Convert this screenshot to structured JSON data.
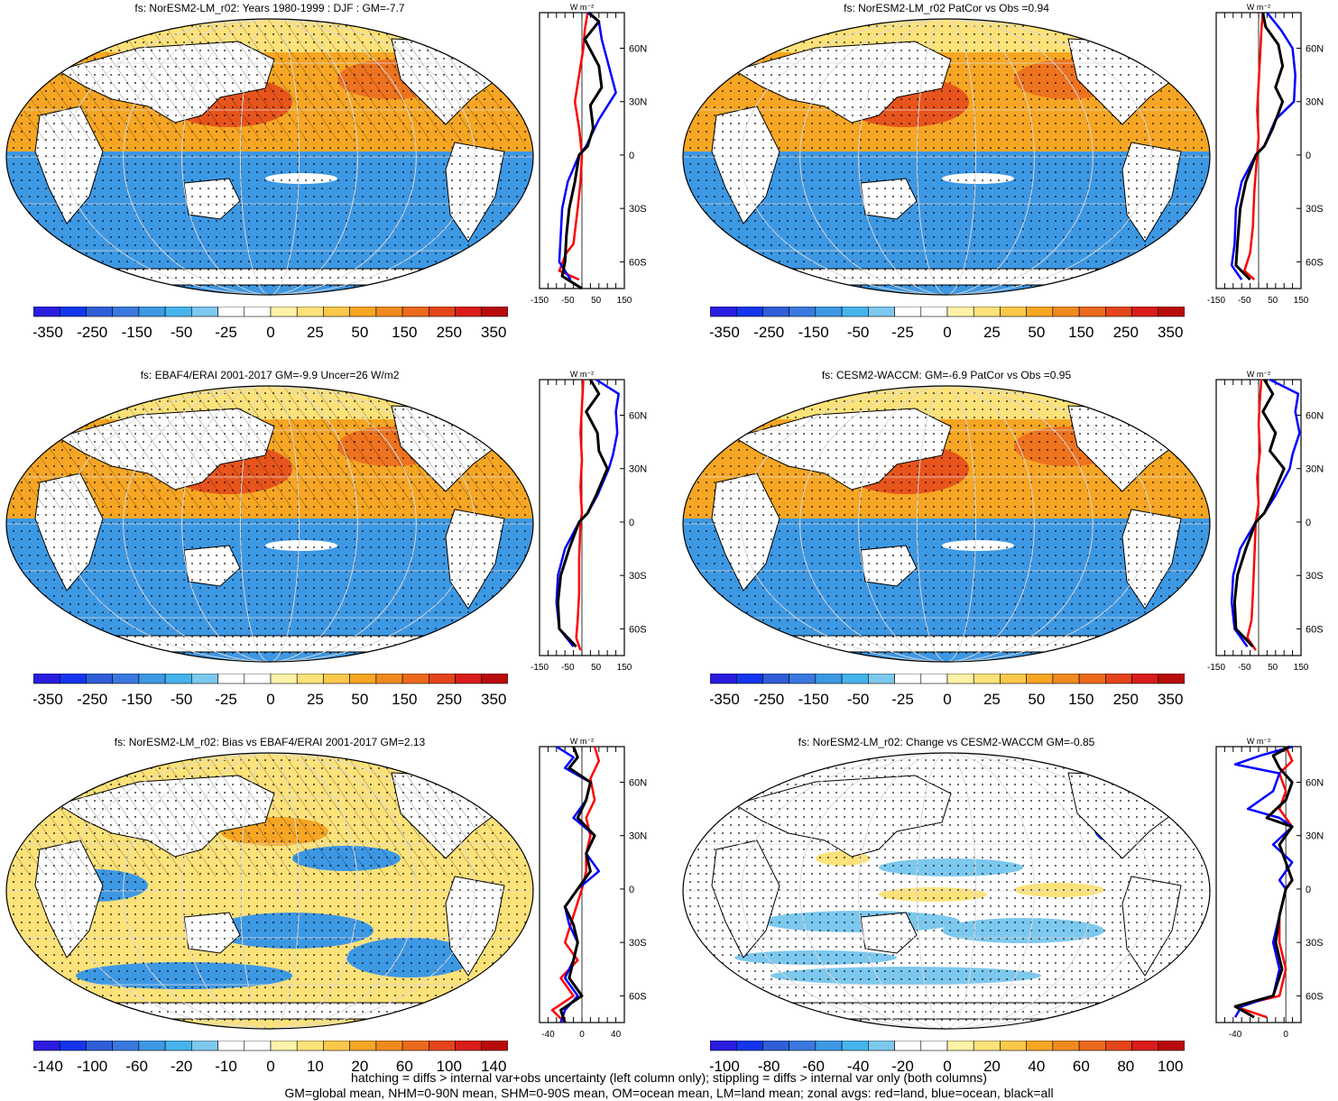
{
  "chart_data": [
    {
      "type": "heatmap",
      "title": "fs: NorESM2-LM_r02: Years 1980-1999 : DJF : GM=-7.7",
      "map_pattern": "nh-positive-sh-negative",
      "overlay": [
        "hatching",
        "stippling"
      ],
      "colorbar": {
        "ticks": [
          "-350",
          "-250",
          "-150",
          "-50",
          "-25",
          "0",
          "25",
          "50",
          "150",
          "250",
          "350"
        ]
      },
      "zonal": {
        "units": "W m⁻²",
        "xticks": [
          "-150",
          "-50",
          "50",
          "150"
        ],
        "xlim": [
          -150,
          150
        ],
        "yticks": [
          "60N",
          "30N",
          "0",
          "30S",
          "60S"
        ],
        "series": [
          {
            "name": "land",
            "color": "#ff0000",
            "lat": [
              80,
              70,
              60,
              45,
              30,
              15,
              0,
              -15,
              -30,
              -50,
              -55,
              -65,
              -70
            ],
            "values": [
              20,
              10,
              5,
              -10,
              -25,
              -10,
              0,
              -5,
              -15,
              -30,
              -55,
              -80,
              -10
            ]
          },
          {
            "name": "ocean",
            "color": "#0000ff",
            "lat": [
              80,
              75,
              65,
              50,
              35,
              20,
              5,
              0,
              -15,
              -30,
              -45,
              -60,
              -70
            ],
            "values": [
              20,
              60,
              70,
              95,
              120,
              60,
              15,
              -10,
              -50,
              -70,
              -75,
              -80,
              -40
            ]
          },
          {
            "name": "all",
            "color": "#000000",
            "lat": [
              80,
              75,
              65,
              50,
              38,
              28,
              15,
              5,
              0,
              -15,
              -30,
              -45,
              -60,
              -68,
              -75
            ],
            "values": [
              25,
              60,
              10,
              60,
              70,
              30,
              40,
              20,
              -10,
              -25,
              -45,
              -55,
              -60,
              -70,
              0
            ]
          }
        ]
      }
    },
    {
      "type": "heatmap",
      "title": "fs: NorESM2-LM_r02 PatCor vs Obs =0.94",
      "map_pattern": "nh-positive-sh-negative",
      "overlay": [
        "stippling"
      ],
      "colorbar": {
        "ticks": [
          "-350",
          "-250",
          "-150",
          "-50",
          "-25",
          "0",
          "25",
          "50",
          "150",
          "250",
          "350"
        ]
      },
      "zonal": {
        "units": "W m⁻²",
        "xticks": [
          "-150",
          "-50",
          "50",
          "150"
        ],
        "xlim": [
          -150,
          150
        ],
        "yticks": [
          "60N",
          "30N",
          "0",
          "30S",
          "60S"
        ],
        "series": [
          {
            "name": "land",
            "color": "#ff0000",
            "lat": [
              80,
              70,
              55,
              40,
              25,
              10,
              0,
              -20,
              -40,
              -55,
              -65,
              -70
            ],
            "values": [
              15,
              10,
              5,
              0,
              -5,
              0,
              -5,
              -15,
              -20,
              -30,
              -50,
              -15
            ]
          },
          {
            "name": "ocean",
            "color": "#0000ff",
            "lat": [
              80,
              70,
              60,
              45,
              30,
              20,
              5,
              0,
              -15,
              -30,
              -50,
              -62,
              -70
            ],
            "values": [
              30,
              80,
              120,
              130,
              125,
              60,
              20,
              -10,
              -60,
              -80,
              -85,
              -95,
              -60
            ]
          },
          {
            "name": "all",
            "color": "#000000",
            "lat": [
              80,
              72,
              62,
              50,
              38,
              30,
              15,
              5,
              0,
              -15,
              -30,
              -50,
              -62,
              -70
            ],
            "values": [
              15,
              25,
              70,
              85,
              60,
              85,
              50,
              20,
              -10,
              -45,
              -65,
              -75,
              -80,
              -30
            ]
          }
        ]
      }
    },
    {
      "type": "heatmap",
      "title": "fs: EBAF4/ERAI 2001-2017 GM=-9.9 Uncer=26 W/m2",
      "map_pattern": "nh-positive-sh-negative",
      "overlay": [
        "hatching",
        "stippling"
      ],
      "colorbar": {
        "ticks": [
          "-350",
          "-250",
          "-150",
          "-50",
          "-25",
          "0",
          "25",
          "50",
          "150",
          "250",
          "350"
        ]
      },
      "zonal": {
        "units": "W m⁻²",
        "xticks": [
          "-150",
          "-50",
          "50",
          "150"
        ],
        "xlim": [
          -150,
          150
        ],
        "yticks": [
          "60N",
          "30N",
          "0",
          "30S",
          "60S"
        ],
        "series": [
          {
            "name": "land",
            "color": "#ff0000",
            "lat": [
              80,
              65,
              50,
              35,
              20,
              5,
              0,
              -20,
              -40,
              -55,
              -65,
              -72
            ],
            "values": [
              5,
              0,
              -5,
              0,
              -5,
              0,
              -5,
              -10,
              -10,
              -15,
              -20,
              -5
            ]
          },
          {
            "name": "ocean",
            "color": "#0000ff",
            "lat": [
              80,
              72,
              62,
              50,
              38,
              30,
              15,
              5,
              0,
              -15,
              -30,
              -45,
              -60,
              -70
            ],
            "values": [
              50,
              130,
              120,
              125,
              110,
              95,
              55,
              20,
              -10,
              -60,
              -85,
              -90,
              -80,
              -30
            ]
          },
          {
            "name": "all",
            "color": "#000000",
            "lat": [
              80,
              72,
              62,
              50,
              40,
              30,
              15,
              5,
              0,
              -15,
              -30,
              -45,
              -60,
              -70
            ],
            "values": [
              30,
              60,
              15,
              55,
              60,
              90,
              50,
              20,
              -10,
              -45,
              -75,
              -85,
              -80,
              -20
            ]
          }
        ]
      }
    },
    {
      "type": "heatmap",
      "title": "fs: CESM2-WACCM: GM=-6.9 PatCor vs Obs =0.95",
      "map_pattern": "nh-positive-sh-negative",
      "overlay": [
        "stippling"
      ],
      "colorbar": {
        "ticks": [
          "-350",
          "-250",
          "-150",
          "-50",
          "-25",
          "0",
          "25",
          "50",
          "150",
          "250",
          "350"
        ]
      },
      "zonal": {
        "units": "W m⁻²",
        "xticks": [
          "-150",
          "-50",
          "50",
          "150"
        ],
        "xlim": [
          -150,
          150
        ],
        "yticks": [
          "60N",
          "30N",
          "0",
          "30S",
          "60S"
        ],
        "series": [
          {
            "name": "land",
            "color": "#ff0000",
            "lat": [
              80,
              70,
              55,
              40,
              25,
              10,
              0,
              -20,
              -40,
              -55,
              -65,
              -72
            ],
            "values": [
              10,
              5,
              0,
              5,
              -5,
              0,
              -10,
              -15,
              -20,
              -25,
              -40,
              -10
            ]
          },
          {
            "name": "ocean",
            "color": "#0000ff",
            "lat": [
              80,
              72,
              62,
              50,
              38,
              30,
              15,
              5,
              0,
              -15,
              -30,
              -45,
              -60,
              -70
            ],
            "values": [
              40,
              140,
              130,
              145,
              120,
              110,
              60,
              20,
              -10,
              -65,
              -90,
              -95,
              -85,
              -40
            ]
          },
          {
            "name": "all",
            "color": "#000000",
            "lat": [
              80,
              72,
              62,
              50,
              40,
              30,
              15,
              5,
              0,
              -15,
              -30,
              -45,
              -60,
              -70
            ],
            "values": [
              20,
              50,
              15,
              60,
              40,
              90,
              50,
              20,
              -10,
              -45,
              -75,
              -85,
              -80,
              -20
            ]
          }
        ]
      }
    },
    {
      "type": "heatmap",
      "title": "fs: NorESM2-LM_r02: Bias vs EBAF4/ERAI 2001-2017 GM=2.13",
      "map_pattern": "mixed-bias",
      "overlay": [
        "hatching",
        "stippling"
      ],
      "colorbar": {
        "ticks": [
          "-140",
          "-100",
          "-60",
          "-20",
          "-10",
          "0",
          "10",
          "20",
          "60",
          "100",
          "140"
        ]
      },
      "zonal": {
        "units": "W m⁻²",
        "xticks": [
          "-40",
          "0",
          "40"
        ],
        "xlim": [
          -50,
          50
        ],
        "yticks": [
          "60N",
          "30N",
          "0",
          "30S",
          "60S"
        ],
        "series": [
          {
            "name": "land",
            "color": "#ff0000",
            "lat": [
              80,
              72,
              62,
              50,
              40,
              30,
              20,
              10,
              0,
              -15,
              -30,
              -40,
              -50,
              -60,
              -68,
              -75
            ],
            "values": [
              15,
              20,
              10,
              15,
              5,
              10,
              5,
              5,
              0,
              -10,
              -20,
              -5,
              -25,
              -10,
              -35,
              -20
            ]
          },
          {
            "name": "ocean",
            "color": "#0000ff",
            "lat": [
              80,
              74,
              68,
              60,
              50,
              40,
              30,
              20,
              10,
              0,
              -10,
              -20,
              -30,
              -40,
              -50,
              -60,
              -68,
              -75
            ],
            "values": [
              -30,
              -10,
              -20,
              10,
              5,
              -10,
              15,
              5,
              20,
              -5,
              -20,
              -15,
              -5,
              -10,
              -20,
              -5,
              -20,
              -25
            ]
          },
          {
            "name": "all",
            "color": "#000000",
            "lat": [
              80,
              74,
              68,
              60,
              50,
              40,
              30,
              20,
              10,
              0,
              -10,
              -20,
              -30,
              -40,
              -50,
              -60,
              -68,
              -75
            ],
            "values": [
              -10,
              -5,
              -15,
              10,
              5,
              -5,
              15,
              5,
              10,
              -5,
              -20,
              -10,
              -5,
              -10,
              -15,
              0,
              -25,
              -20
            ]
          }
        ]
      }
    },
    {
      "type": "heatmap",
      "title": "fs: NorESM2-LM_r02: Change vs CESM2-WACCM GM=-0.85",
      "map_pattern": "mixed-change",
      "overlay": [
        "stippling"
      ],
      "colorbar": {
        "ticks": [
          "-100",
          "-80",
          "-60",
          "-40",
          "-20",
          "0",
          "20",
          "40",
          "60",
          "80",
          "100"
        ]
      },
      "zonal": {
        "units": "W m⁻²",
        "xticks": [
          "-40",
          "0"
        ],
        "xlim": [
          -55,
          12
        ],
        "yticks": [
          "60N",
          "30N",
          "0",
          "30S",
          "60S"
        ],
        "series": [
          {
            "name": "land",
            "color": "#ff0000",
            "lat": [
              80,
              72,
              65,
              55,
              45,
              35,
              25,
              15,
              5,
              0,
              -15,
              -30,
              -45,
              -60,
              -66,
              -72
            ],
            "values": [
              0,
              5,
              -5,
              0,
              -5,
              5,
              -5,
              0,
              5,
              0,
              -5,
              -5,
              0,
              -5,
              -40,
              -15
            ]
          },
          {
            "name": "ocean",
            "color": "#0000ff",
            "lat": [
              80,
              75,
              70,
              65,
              55,
              45,
              40,
              35,
              25,
              15,
              5,
              0,
              -15,
              -30,
              -45,
              -60,
              -66,
              -72
            ],
            "values": [
              5,
              -20,
              -40,
              -5,
              -10,
              -30,
              -5,
              5,
              -10,
              5,
              -5,
              0,
              -5,
              -10,
              -5,
              -10,
              -35,
              -40
            ]
          },
          {
            "name": "all",
            "color": "#000000",
            "lat": [
              80,
              75,
              68,
              60,
              50,
              40,
              35,
              25,
              15,
              5,
              0,
              -15,
              -30,
              -45,
              -60,
              -66,
              -72
            ],
            "values": [
              3,
              -10,
              -5,
              5,
              0,
              -15,
              5,
              -5,
              0,
              5,
              0,
              -5,
              -8,
              -3,
              -10,
              -40,
              -25
            ]
          }
        ]
      }
    }
  ],
  "footnotes": [
    "hatching = diffs > internal var+obs uncertainty (left column only); stippling = diffs > internal var only (both columns)",
    "GM=global mean, NHM=0-90N mean, SHM=0-90S mean, OM=ocean mean, LM=land mean; zonal avgs: red=land, blue=ocean, black=all"
  ],
  "colors": {
    "bar_colors": [
      "#2a1de0",
      "#1336ee",
      "#2e5fd8",
      "#3a78e0",
      "#3d98e4",
      "#46b4ec",
      "#7dc8ee",
      "#ffffff",
      "#ffffff",
      "#fff2a8",
      "#fde27a",
      "#fbc84a",
      "#f6a623",
      "#f08a1f",
      "#ec6a1d",
      "#e4451b",
      "#d81d1a",
      "#b80b0b"
    ],
    "land": "#ffffff",
    "ocean_neg": "#3d98e4",
    "ocean_pos": "#f6a623"
  }
}
